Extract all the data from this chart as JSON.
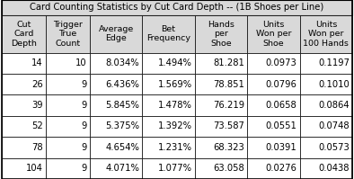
{
  "title": "Card Counting Statistics by Cut Card Depth -- (1B Shoes per Line)",
  "headers": [
    "Cut\nCard\nDepth",
    "Trigger\nTrue\nCount",
    "Average\nEdge",
    "Bet\nFrequency",
    "Hands\nper\nShoe",
    "Units\nWon per\nShoe",
    "Units\nWon per\n100 Hands"
  ],
  "data_rows": [
    [
      "14",
      "10",
      "8.034%",
      "1.494%",
      "81.281",
      "0.0973",
      "0.1197"
    ],
    [
      "26",
      "9",
      "6.436%",
      "1.569%",
      "78.851",
      "0.0796",
      "0.1010"
    ],
    [
      "39",
      "9",
      "5.845%",
      "1.478%",
      "76.219",
      "0.0658",
      "0.0864"
    ],
    [
      "52",
      "9",
      "5.375%",
      "1.392%",
      "73.587",
      "0.0551",
      "0.0748"
    ],
    [
      "78",
      "9",
      "4.654%",
      "1.231%",
      "68.323",
      "0.0391",
      "0.0573"
    ],
    [
      "104",
      "9",
      "4.071%",
      "1.077%",
      "63.058",
      "0.0276",
      "0.0438"
    ]
  ],
  "header_bg": "#D9D9D9",
  "cell_bg": "#FFFFFF",
  "border_color": "#000000",
  "text_color": "#000000",
  "title_fontsize": 7.2,
  "header_fontsize": 6.8,
  "cell_fontsize": 7.2,
  "col_weights": [
    0.88,
    0.88,
    1.05,
    1.05,
    1.05,
    1.05,
    1.05
  ],
  "fig_width": 3.94,
  "fig_height": 1.99,
  "dpi": 100
}
